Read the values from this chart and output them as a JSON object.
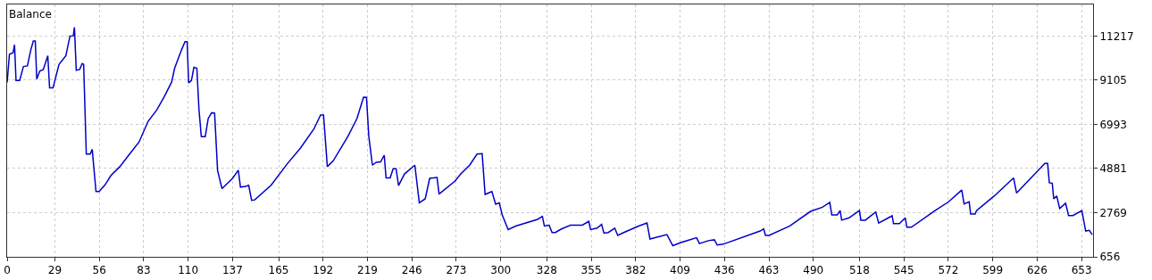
{
  "chart_data": {
    "type": "line",
    "title": "Balance",
    "x": [
      0,
      1.4,
      3.6,
      4.5,
      5.4,
      7.6,
      9.9,
      12.3,
      14.4,
      15.9,
      17.1,
      18,
      19.8,
      22,
      24.7,
      25.8,
      27.9,
      31.5,
      35.7,
      38.2,
      40.2,
      40.9,
      42,
      44.1,
      45.6,
      46.5,
      48.1,
      50.5,
      51.7,
      54,
      55.9,
      59.5,
      63.1,
      68.5,
      73.9,
      80.2,
      85.6,
      91,
      95.5,
      100,
      101.8,
      106,
      108.1,
      109.4,
      110.3,
      112,
      113.5,
      115.3,
      116.6,
      118,
      120.4,
      122.2,
      124.3,
      126.1,
      127.9,
      130.6,
      137,
      140.5,
      141.8,
      145,
      146.8,
      148.6,
      150.5,
      160.4,
      170.3,
      178.4,
      186.5,
      190.5,
      192.3,
      194.6,
      198.2,
      207.2,
      212.6,
      216.6,
      218.4,
      219.8,
      222,
      224.3,
      227,
      229.2,
      230.3,
      232.8,
      234.6,
      236.4,
      237.9,
      241.5,
      247.8,
      250.5,
      254.1,
      256.8,
      261.3,
      262.5,
      272.1,
      275.7,
      281.1,
      285.6,
      288.7,
      290.5,
      294.6,
      296.9,
      299.1,
      300.9,
      304.5,
      309.1,
      322.4,
      325.3,
      326.5,
      329.4,
      331.2,
      333.2,
      336.9,
      342.4,
      349.6,
      353.5,
      354.6,
      358.6,
      361.3,
      362.7,
      365.4,
      369.3,
      371.1,
      374.8,
      383.8,
      388.9,
      390.7,
      401,
      404.6,
      409.1,
      419,
      420.8,
      426.2,
      429.8,
      431.6,
      435.2,
      457.7,
      459.8,
      460.9,
      463.1,
      475.7,
      488.3,
      495.5,
      500,
      501.2,
      504.5,
      506.3,
      507.2,
      511.7,
      518,
      518.9,
      521.6,
      527.9,
      529.7,
      537.9,
      538.7,
      542.3,
      545.9,
      546.8,
      549.6,
      564,
      572.2,
      580.2,
      581.6,
      584.7,
      585.6,
      588.3,
      589.2,
      600,
      611.7,
      613.5,
      630.7,
      632.4,
      633.4,
      635.2,
      636.1,
      637.9,
      639.7,
      643.3,
      645.1,
      647.8,
      653.2,
      655.5,
      657.7,
      659.5
    ],
    "series": [
      {
        "color": "#0000c8",
        "values": [
          9000,
          10350,
          10420,
          10800,
          9090,
          9090,
          9760,
          9790,
          10560,
          10980,
          10980,
          9160,
          9540,
          9620,
          10280,
          8740,
          8740,
          9860,
          10280,
          11220,
          11230,
          11640,
          9580,
          9620,
          9900,
          9860,
          5570,
          5570,
          5800,
          3780,
          3780,
          4100,
          4550,
          4970,
          5520,
          6150,
          7130,
          7690,
          8320,
          9020,
          9680,
          10560,
          10950,
          10950,
          8980,
          9090,
          9720,
          9680,
          7690,
          6410,
          6410,
          7270,
          7550,
          7530,
          4780,
          3920,
          4410,
          4800,
          3990,
          4030,
          4080,
          3360,
          3380,
          4080,
          5110,
          5870,
          6780,
          7440,
          7440,
          4970,
          5250,
          6430,
          7270,
          8290,
          8280,
          6430,
          5040,
          5180,
          5200,
          5520,
          4430,
          4430,
          4870,
          4870,
          4060,
          4620,
          5040,
          3240,
          3430,
          4410,
          4450,
          3660,
          4270,
          4620,
          5040,
          5570,
          5590,
          3640,
          3780,
          3170,
          3240,
          2660,
          1960,
          2130,
          2450,
          2590,
          2130,
          2170,
          1820,
          1820,
          1990,
          2170,
          2170,
          2350,
          1960,
          2030,
          2210,
          1790,
          1820,
          2030,
          1680,
          1820,
          2130,
          2280,
          1510,
          1720,
          1190,
          1330,
          1570,
          1290,
          1430,
          1470,
          1220,
          1260,
          1890,
          1990,
          1680,
          1680,
          2130,
          2830,
          3030,
          3260,
          2660,
          2660,
          2870,
          2410,
          2520,
          2870,
          2410,
          2410,
          2800,
          2270,
          2620,
          2240,
          2240,
          2520,
          2070,
          2070,
          2870,
          3290,
          3850,
          3190,
          3290,
          2700,
          2700,
          2870,
          3570,
          4430,
          3710,
          5130,
          5130,
          4200,
          4170,
          3430,
          3570,
          2970,
          3220,
          2630,
          2630,
          2870,
          1890,
          1920,
          1720
        ]
      }
    ],
    "xlim": [
      0,
      660
    ],
    "xticks": [
      0,
      29,
      56,
      83,
      110,
      137,
      165,
      192,
      219,
      246,
      273,
      300,
      328,
      355,
      382,
      409,
      436,
      463,
      490,
      518,
      545,
      572,
      599,
      626,
      653
    ],
    "ylim": [
      656,
      12730
    ],
    "yticks": [
      656,
      2769,
      4881,
      6993,
      9105,
      11217
    ],
    "grid": true,
    "legend": false
  }
}
